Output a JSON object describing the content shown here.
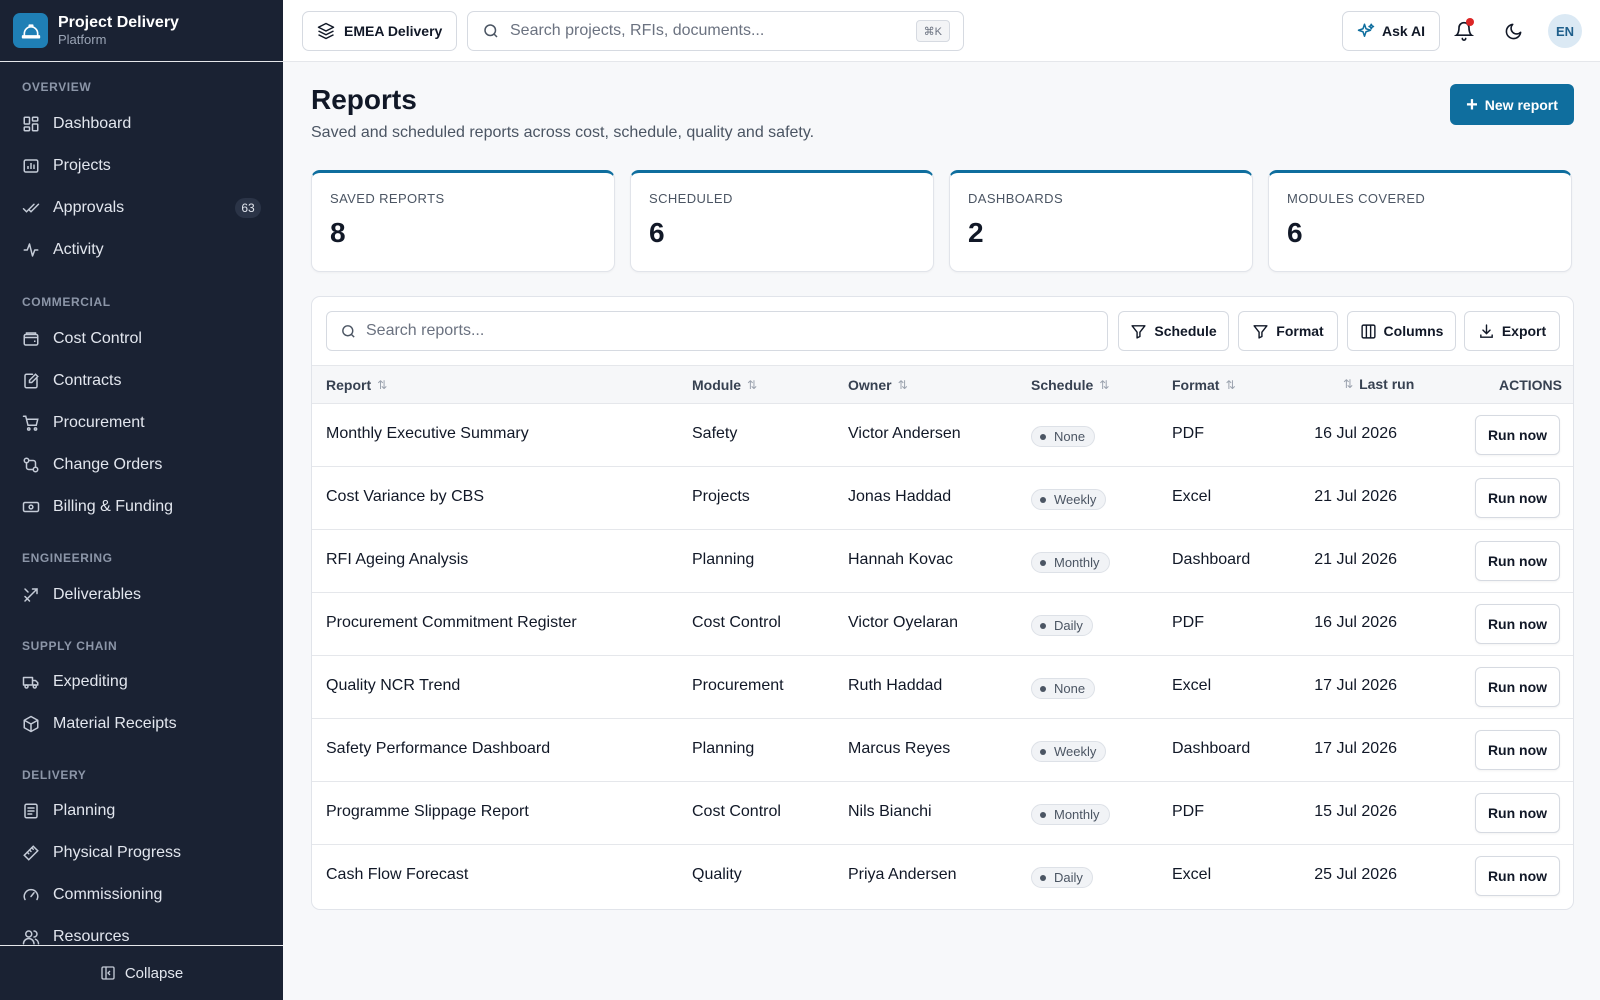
{
  "brand": {
    "title": "Project Delivery",
    "subtitle": "Platform"
  },
  "sidebar": {
    "sections": [
      {
        "label": "OVERVIEW"
      },
      {
        "label": "COMMERCIAL"
      },
      {
        "label": "ENGINEERING"
      },
      {
        "label": "SUPPLY CHAIN"
      },
      {
        "label": "DELIVERY"
      }
    ],
    "items": [
      {
        "label": "Dashboard",
        "icon": "dashboard-icon"
      },
      {
        "label": "Projects",
        "icon": "projects-icon"
      },
      {
        "label": "Approvals",
        "icon": "approvals-icon",
        "badge": "63"
      },
      {
        "label": "Activity",
        "icon": "activity-icon"
      },
      {
        "label": "Cost Control",
        "icon": "cost-control-icon"
      },
      {
        "label": "Contracts",
        "icon": "contracts-icon"
      },
      {
        "label": "Procurement",
        "icon": "cart-icon"
      },
      {
        "label": "Change Orders",
        "icon": "change-orders-icon"
      },
      {
        "label": "Billing & Funding",
        "icon": "billing-icon"
      },
      {
        "label": "Deliverables",
        "icon": "deliverables-icon"
      },
      {
        "label": "Expediting",
        "icon": "truck-icon"
      },
      {
        "label": "Material Receipts",
        "icon": "package-icon"
      },
      {
        "label": "Planning",
        "icon": "planning-icon"
      },
      {
        "label": "Physical Progress",
        "icon": "ruler-icon"
      },
      {
        "label": "Commissioning",
        "icon": "gauge-icon"
      },
      {
        "label": "Resources",
        "icon": "users-icon"
      }
    ],
    "collapse_label": "Collapse"
  },
  "topbar": {
    "workspace": "EMEA Delivery",
    "search_placeholder": "Search projects, RFIs, documents...",
    "search_shortcut": "⌘K",
    "ask_ai": "Ask AI",
    "avatar_initials": "EN"
  },
  "page": {
    "title": "Reports",
    "subtitle": "Saved and scheduled reports across cost, schedule, quality and safety.",
    "new_report": "New report"
  },
  "stats": [
    {
      "label": "SAVED REPORTS",
      "value": "8"
    },
    {
      "label": "SCHEDULED",
      "value": "6"
    },
    {
      "label": "DASHBOARDS",
      "value": "2"
    },
    {
      "label": "MODULES COVERED",
      "value": "6"
    }
  ],
  "toolbar": {
    "search_placeholder": "Search reports...",
    "schedule": "Schedule",
    "format": "Format",
    "columns": "Columns",
    "export": "Export"
  },
  "table": {
    "headers": {
      "report": "Report",
      "module": "Module",
      "owner": "Owner",
      "schedule": "Schedule",
      "format": "Format",
      "last_run": "Last run",
      "actions": "ACTIONS"
    },
    "sort_glyph": "⇅",
    "run_label": "Run now",
    "rows": [
      {
        "report": "Monthly Executive Summary",
        "module": "Safety",
        "owner": "Victor Andersen",
        "schedule": "None",
        "format": "PDF",
        "last_run": "16 Jul 2026"
      },
      {
        "report": "Cost Variance by CBS",
        "module": "Projects",
        "owner": "Jonas Haddad",
        "schedule": "Weekly",
        "format": "Excel",
        "last_run": "21 Jul 2026"
      },
      {
        "report": "RFI Ageing Analysis",
        "module": "Planning",
        "owner": "Hannah Kovac",
        "schedule": "Monthly",
        "format": "Dashboard",
        "last_run": "21 Jul 2026"
      },
      {
        "report": "Procurement Commitment Register",
        "module": "Cost Control",
        "owner": "Victor Oyelaran",
        "schedule": "Daily",
        "format": "PDF",
        "last_run": "16 Jul 2026"
      },
      {
        "report": "Quality NCR Trend",
        "module": "Procurement",
        "owner": "Ruth Haddad",
        "schedule": "None",
        "format": "Excel",
        "last_run": "17 Jul 2026"
      },
      {
        "report": "Safety Performance Dashboard",
        "module": "Planning",
        "owner": "Marcus Reyes",
        "schedule": "Weekly",
        "format": "Dashboard",
        "last_run": "17 Jul 2026"
      },
      {
        "report": "Programme Slippage Report",
        "module": "Cost Control",
        "owner": "Nils Bianchi",
        "schedule": "Monthly",
        "format": "PDF",
        "last_run": "15 Jul 2026"
      },
      {
        "report": "Cash Flow Forecast",
        "module": "Quality",
        "owner": "Priya Andersen",
        "schedule": "Daily",
        "format": "Excel",
        "last_run": "25 Jul 2026"
      }
    ]
  },
  "colors": {
    "sidebar_bg": "#1a2233",
    "accent": "#0f6e9e",
    "notification": "#dc2626"
  }
}
